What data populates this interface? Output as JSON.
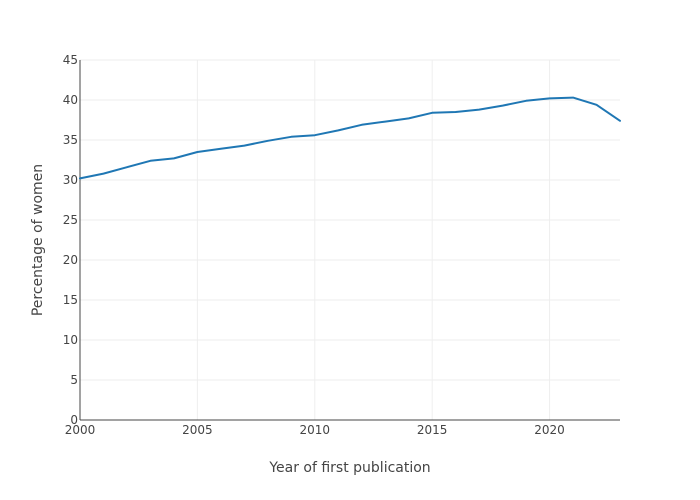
{
  "chart_data": {
    "type": "line",
    "title": "",
    "xlabel": "Year of first publication",
    "ylabel": "Percentage of women",
    "xlim": [
      2000,
      2023
    ],
    "ylim": [
      0,
      45
    ],
    "x_ticks": [
      2000,
      2005,
      2010,
      2015,
      2020
    ],
    "y_ticks": [
      0,
      5,
      10,
      15,
      20,
      25,
      30,
      35,
      40,
      45
    ],
    "grid": true,
    "legend": "none",
    "series": [
      {
        "color": "#1f77b4",
        "x": [
          2000,
          2001,
          2002,
          2003,
          2004,
          2005,
          2006,
          2007,
          2008,
          2009,
          2010,
          2011,
          2012,
          2013,
          2014,
          2015,
          2016,
          2017,
          2018,
          2019,
          2020,
          2021,
          2022,
          2023
        ],
        "y": [
          30.2,
          30.8,
          31.6,
          32.4,
          32.7,
          33.5,
          33.9,
          34.3,
          34.9,
          35.4,
          35.6,
          36.2,
          36.9,
          37.3,
          37.7,
          38.4,
          38.5,
          38.8,
          39.3,
          39.9,
          40.2,
          40.3,
          39.4,
          37.4
        ]
      }
    ]
  }
}
